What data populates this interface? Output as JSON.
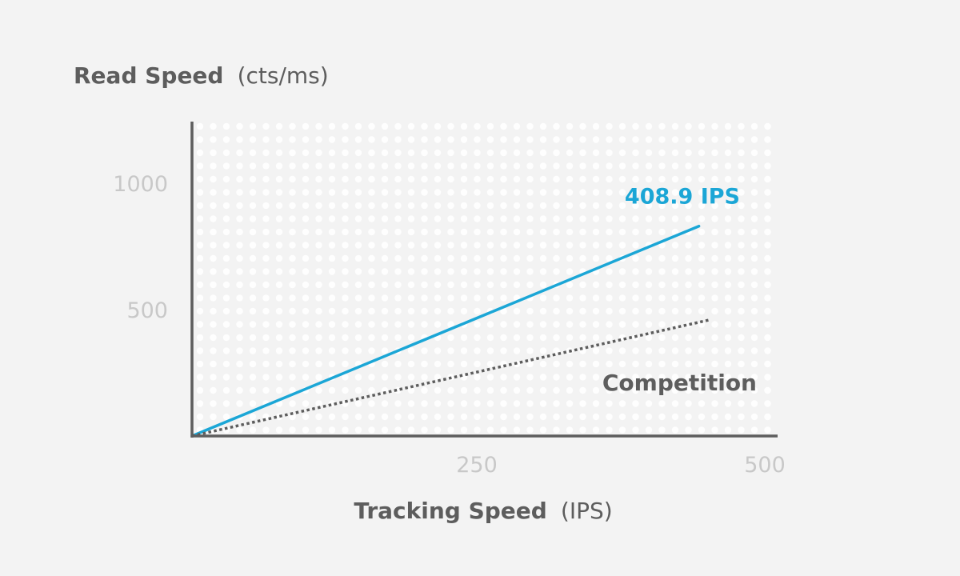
{
  "chart_data": {
    "type": "line",
    "xlabel": "Tracking Speed",
    "xlabel_unit": "(IPS)",
    "ylabel": "Read Speed",
    "ylabel_unit": "(cts/ms)",
    "xlim": [
      0,
      500
    ],
    "ylim": [
      0,
      1250
    ],
    "x_ticks": [
      {
        "value": 250,
        "label": "250"
      },
      {
        "value": 500,
        "label": "500"
      }
    ],
    "y_ticks": [
      {
        "value": 500,
        "label": "500"
      },
      {
        "value": 1000,
        "label": "1000"
      }
    ],
    "grid": "dotted background",
    "series": [
      {
        "name": "408.9 IPS",
        "style": "solid",
        "color": "#1ba6d6",
        "x": [
          0,
          440
        ],
        "y": [
          0,
          830
        ]
      },
      {
        "name": "Competition",
        "style": "dotted",
        "color": "#5d5d5d",
        "x": [
          0,
          450
        ],
        "y": [
          0,
          460
        ]
      }
    ]
  },
  "colors": {
    "background": "#f3f3f3",
    "axis": "#5d5d5d",
    "tick_label": "#c8c8c8",
    "accent": "#1ba6d6",
    "dots": "#ffffff"
  }
}
